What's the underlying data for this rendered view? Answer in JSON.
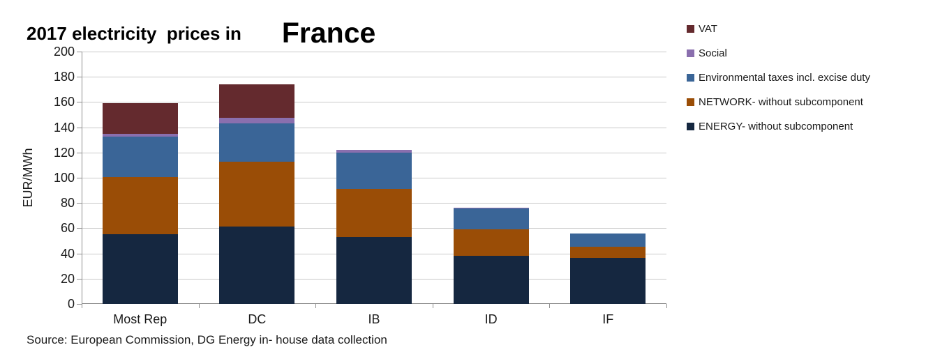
{
  "header": {
    "title_prefix": "2017 electricity  prices in",
    "country": "France"
  },
  "footer": {
    "source": "Source: European Commission, DG Energy in- house data collection"
  },
  "colors": {
    "vat": "#642a2e",
    "social": "#8a6fae",
    "environmental": "#3a6597",
    "network": "#9a4d06",
    "energy": "#152740",
    "gridline": "#c9c9c9",
    "axis": "#8e8e8e",
    "text": "#1a1a1a"
  },
  "legend": [
    {
      "label": "VAT",
      "color": "#642a2e"
    },
    {
      "label": "Social",
      "color": "#8a6fae"
    },
    {
      "label": "Environmental taxes incl. excise duty",
      "color": "#3a6597"
    },
    {
      "label": "NETWORK- without subcomponent",
      "color": "#9a4d06"
    },
    {
      "label": "ENERGY- without subcomponent",
      "color": "#152740"
    }
  ],
  "chart_data": {
    "type": "bar",
    "stacked": true,
    "title": "2017 electricity prices in France",
    "ylabel": "EUR/MWh",
    "xlabel": "",
    "categories": [
      "Most Rep",
      "DC",
      "IB",
      "ID",
      "IF"
    ],
    "series": [
      {
        "name": "ENERGY- without subcomponent",
        "color": "#152740",
        "values": [
          55,
          61.5,
          53,
          38,
          36.5
        ]
      },
      {
        "name": "NETWORK- without subcomponent",
        "color": "#9a4d06",
        "values": [
          45.5,
          51,
          38,
          21,
          9
        ]
      },
      {
        "name": "Environmental taxes incl. excise duty",
        "color": "#3a6597",
        "values": [
          32,
          30.5,
          29,
          16.5,
          10.5
        ]
      },
      {
        "name": "Social",
        "color": "#8a6fae",
        "values": [
          2.5,
          4.5,
          2,
          1,
          0
        ]
      },
      {
        "name": "VAT",
        "color": "#642a2e",
        "values": [
          24,
          26.5,
          0,
          0,
          0
        ]
      }
    ],
    "totals": [
      159,
      174,
      122,
      76.5,
      56
    ],
    "ylim": [
      0,
      200
    ],
    "ytick_step": 20,
    "grid": true,
    "legend_position": "right"
  }
}
